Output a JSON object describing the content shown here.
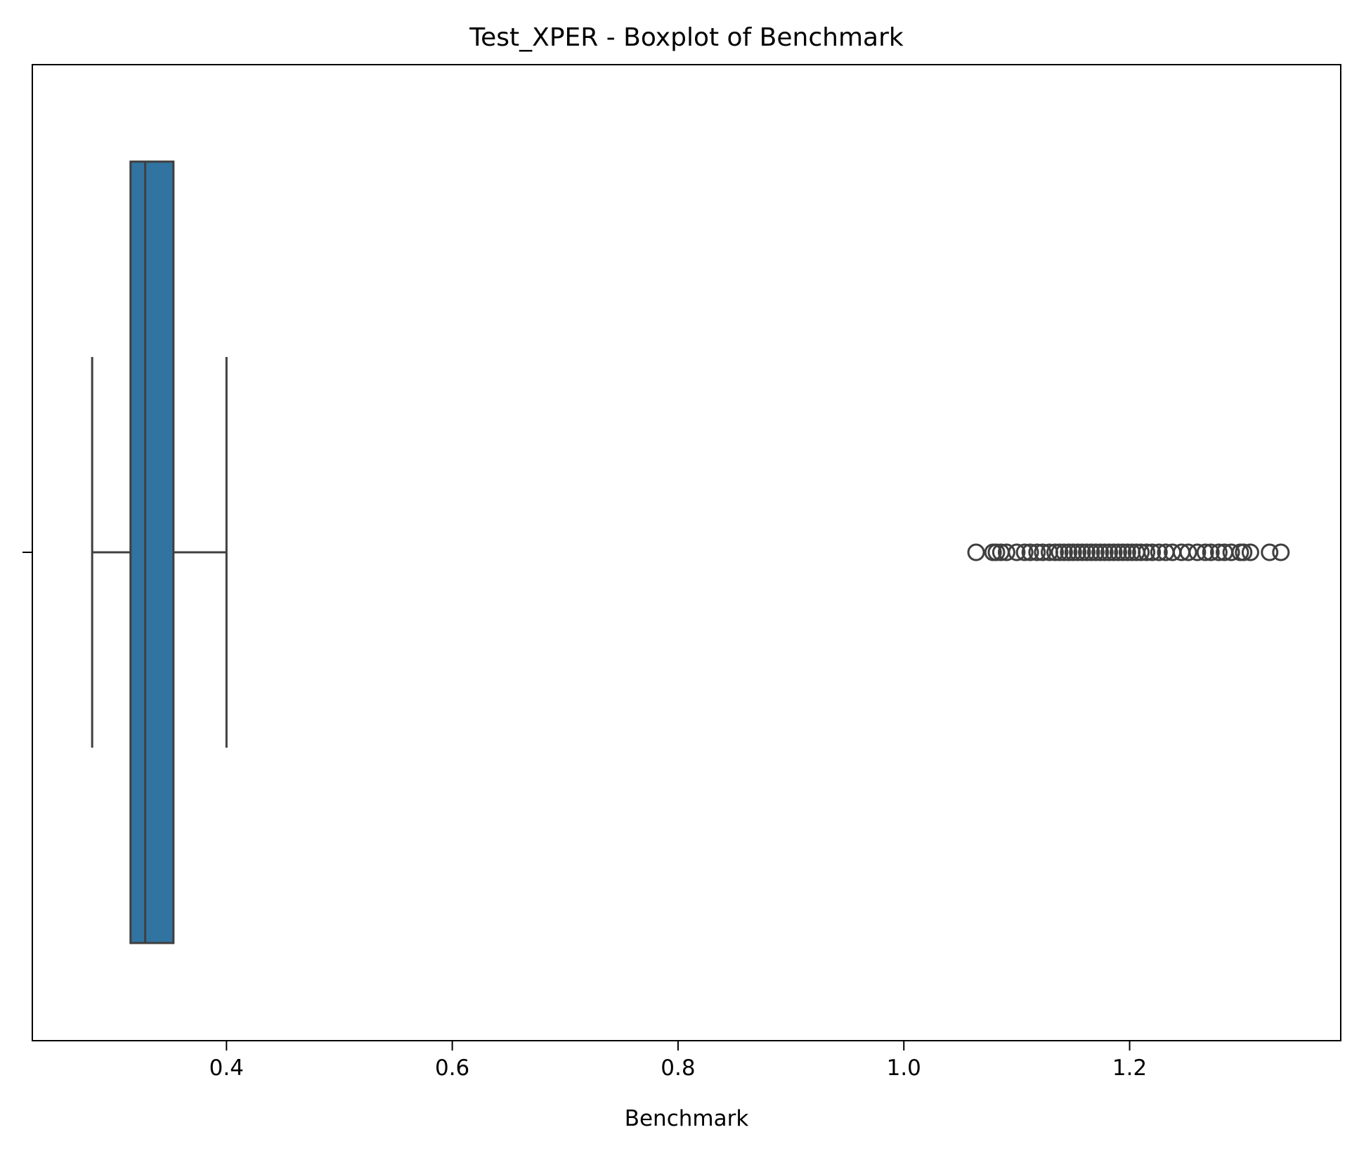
{
  "chart_data": {
    "type": "boxplot",
    "orientation": "horizontal",
    "title": "Test_XPER - Boxplot of Benchmark",
    "xlabel": "Benchmark",
    "ylabel": "",
    "xlim": [
      0.228,
      1.387
    ],
    "xticks": [
      0.4,
      0.6,
      0.8,
      1.0,
      1.2
    ],
    "xtick_labels": [
      "0.4",
      "0.6",
      "0.8",
      "1.0",
      "1.2"
    ],
    "grid": false,
    "box": {
      "whisker_low": 0.281,
      "q1": 0.315,
      "median": 0.328,
      "q3": 0.353,
      "whisker_high": 0.4
    },
    "outliers": [
      1.064,
      1.079,
      1.082,
      1.086,
      1.091,
      1.1,
      1.107,
      1.112,
      1.118,
      1.123,
      1.129,
      1.134,
      1.138,
      1.142,
      1.146,
      1.15,
      1.154,
      1.158,
      1.162,
      1.166,
      1.17,
      1.174,
      1.178,
      1.182,
      1.186,
      1.19,
      1.194,
      1.198,
      1.202,
      1.206,
      1.21,
      1.215,
      1.22,
      1.226,
      1.232,
      1.238,
      1.246,
      1.252,
      1.26,
      1.267,
      1.272,
      1.279,
      1.284,
      1.29,
      1.298,
      1.301,
      1.307,
      1.324,
      1.334
    ],
    "colors": {
      "box_fill": "#3274a1",
      "lines": "#3f3f3f",
      "axes": "#000000",
      "background": "#ffffff"
    }
  }
}
